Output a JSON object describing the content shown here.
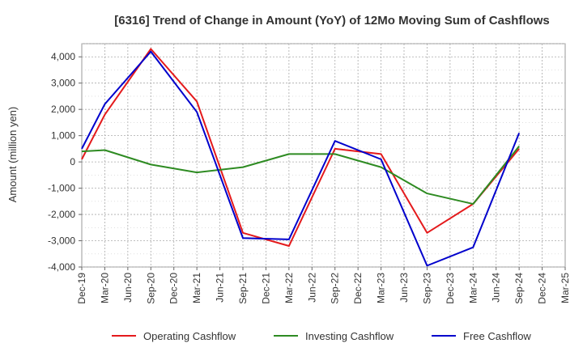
{
  "chart_data": {
    "type": "line",
    "title": "[6316]  Trend of Change in Amount (YoY) of 12Mo Moving Sum of Cashflows",
    "xlabel": "",
    "ylabel": "Amount (million yen)",
    "categories": [
      "Dec-19",
      "Mar-20",
      "Jun-20",
      "Sep-20",
      "Dec-20",
      "Mar-21",
      "Jun-21",
      "Sep-21",
      "Dec-21",
      "Mar-22",
      "Jun-22",
      "Sep-22",
      "Dec-22",
      "Mar-23",
      "Jun-23",
      "Sep-23",
      "Dec-23",
      "Mar-24",
      "Jun-24",
      "Sep-24",
      "Dec-24",
      "Mar-25"
    ],
    "ylim": [
      -4000,
      4500
    ],
    "yticks": [
      -4000,
      -3000,
      -2000,
      -1000,
      0,
      1000,
      2000,
      3000,
      4000
    ],
    "ytick_labels": [
      "-4,000",
      "-3,000",
      "-2,000",
      "-1,000",
      "0",
      "1,000",
      "2,000",
      "3,000",
      "4,000"
    ],
    "grid": true,
    "legend_position": "bottom",
    "series": [
      {
        "name": "Operating Cashflow",
        "color": "#e41a1c",
        "values": [
          100,
          1800,
          null,
          4300,
          null,
          2300,
          null,
          -2700,
          null,
          -3200,
          null,
          500,
          null,
          300,
          null,
          -2700,
          null,
          -1600,
          null,
          500,
          null,
          null
        ]
      },
      {
        "name": "Investing Cashflow",
        "color": "#2e8b22",
        "values": [
          400,
          450,
          null,
          -100,
          null,
          -400,
          null,
          -200,
          null,
          300,
          null,
          300,
          null,
          -200,
          null,
          -1200,
          null,
          -1600,
          null,
          600,
          null,
          null
        ]
      },
      {
        "name": "Free Cashflow",
        "color": "#0000cc",
        "values": [
          500,
          2200,
          null,
          4200,
          null,
          1900,
          null,
          -2900,
          null,
          -2950,
          null,
          800,
          null,
          100,
          null,
          -3950,
          null,
          -3250,
          null,
          1100,
          null,
          null
        ]
      }
    ]
  }
}
